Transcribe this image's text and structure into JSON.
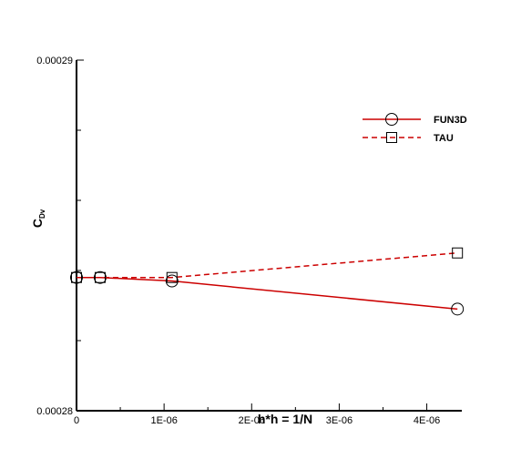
{
  "chart_data": {
    "type": "line",
    "xlabel": "h*h = 1/N",
    "ylabel_main": "C",
    "ylabel_sub": "Dv",
    "xlim": [
      0,
      4.4e-06
    ],
    "ylim": [
      0.00028,
      0.00029
    ],
    "x_ticks": [
      {
        "value": 0,
        "label": "0"
      },
      {
        "value": 1e-06,
        "label": "1E-06"
      },
      {
        "value": 2e-06,
        "label": "2E-06"
      },
      {
        "value": 3e-06,
        "label": "3E-06"
      },
      {
        "value": 4e-06,
        "label": "4E-06"
      }
    ],
    "y_ticks": [
      {
        "value": 0.00028,
        "label": "0.00028"
      },
      {
        "value": 0.00029,
        "label": "0.00029"
      }
    ],
    "y_minor": [
      0.000282,
      0.000284,
      0.000286,
      0.000288
    ],
    "x_minor": [
      5e-07,
      1.5e-06,
      2.5e-06,
      3.5e-06
    ],
    "legend_position": "top-right",
    "grid": false,
    "series": [
      {
        "name": "FUN3D",
        "color": "#cc0000",
        "dash": "solid",
        "marker": "circle",
        "x": [
          0,
          2.7e-07,
          1.09e-06,
          4.35e-06
        ],
        "y": [
          0.0002838,
          0.0002838,
          0.0002837,
          0.0002829
        ]
      },
      {
        "name": "TAU",
        "color": "#cc0000",
        "dash": "dashed",
        "marker": "square",
        "x": [
          0,
          2.7e-07,
          1.09e-06,
          4.35e-06
        ],
        "y": [
          0.0002838,
          0.0002838,
          0.0002838,
          0.0002845
        ]
      }
    ]
  }
}
